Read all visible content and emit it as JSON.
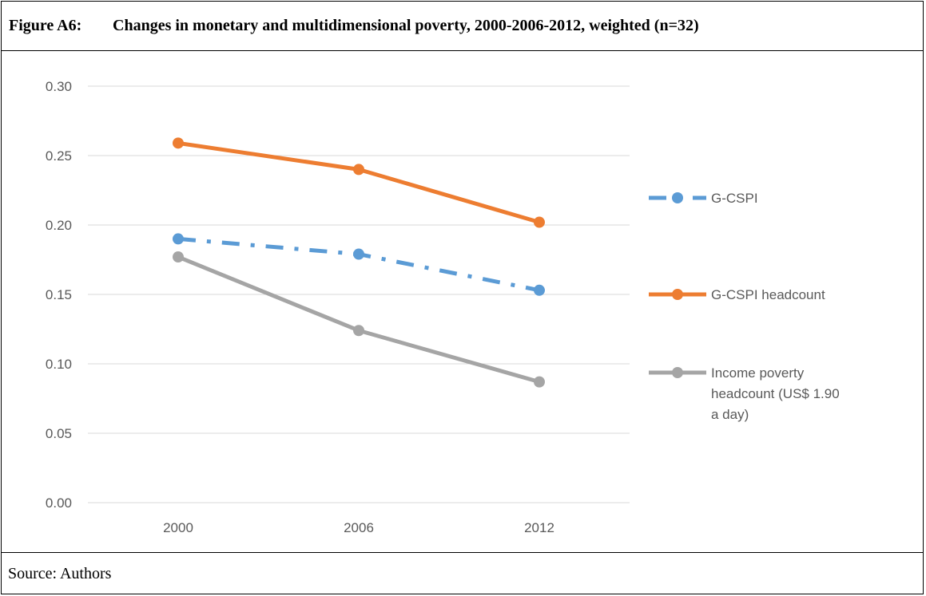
{
  "figure": {
    "label": "Figure A6:",
    "title": "Changes in monetary and multidimensional poverty, 2000-2006-2012, weighted (n=32)",
    "source": "Source: Authors"
  },
  "chart_data": {
    "type": "line",
    "x": [
      "2000",
      "2006",
      "2012"
    ],
    "ylim": [
      0,
      0.3
    ],
    "yticks": [
      "0.00",
      "0.05",
      "0.10",
      "0.15",
      "0.20",
      "0.25",
      "0.30"
    ],
    "grid": true,
    "legend_position": "right",
    "series": [
      {
        "name": "G-CSPI",
        "values": [
          0.19,
          0.179,
          0.153
        ],
        "color": "#5B9BD5",
        "style": "dash-dot",
        "legend_lines": [
          "G-CSPI"
        ]
      },
      {
        "name": "G-CSPI headcount",
        "values": [
          0.259,
          0.24,
          0.202
        ],
        "color": "#ED7D31",
        "style": "solid",
        "legend_lines": [
          "G-CSPI headcount"
        ]
      },
      {
        "name": "Income poverty headcount (US$ 1.90 a day)",
        "values": [
          0.177,
          0.124,
          0.087
        ],
        "color": "#A5A5A5",
        "style": "solid",
        "legend_lines": [
          "Income poverty",
          "headcount (US$ 1.90",
          "a day)"
        ]
      }
    ]
  }
}
